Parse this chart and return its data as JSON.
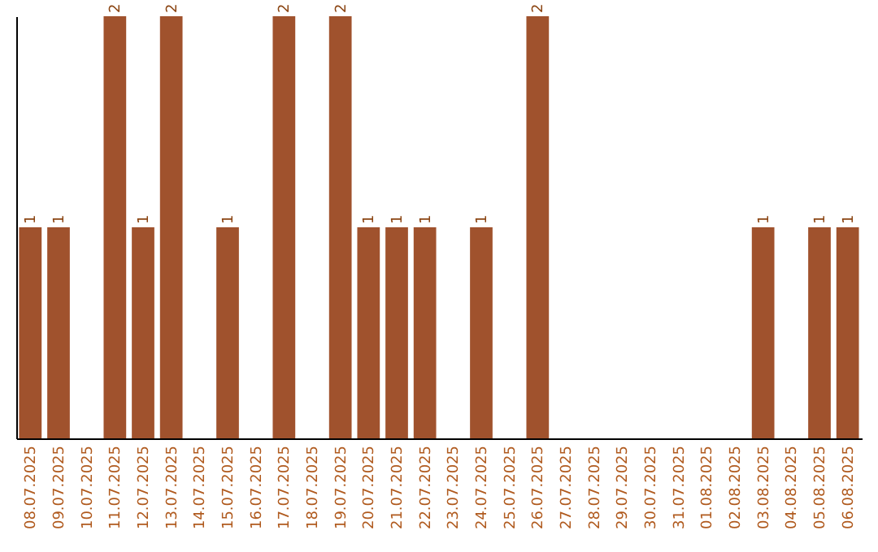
{
  "chart_data": {
    "type": "bar",
    "categories": [
      "08.07.2025",
      "09.07.2025",
      "10.07.2025",
      "11.07.2025",
      "12.07.2025",
      "13.07.2025",
      "14.07.2025",
      "15.07.2025",
      "16.07.2025",
      "17.07.2025",
      "18.07.2025",
      "19.07.2025",
      "20.07.2025",
      "21.07.2025",
      "22.07.2025",
      "23.07.2025",
      "24.07.2025",
      "25.07.2025",
      "26.07.2025",
      "27.07.2025",
      "28.07.2025",
      "29.07.2025",
      "30.07.2025",
      "31.07.2025",
      "01.08.2025",
      "02.08.2025",
      "03.08.2025",
      "04.08.2025",
      "05.08.2025",
      "06.08.2025"
    ],
    "values": [
      1,
      1,
      null,
      2,
      1,
      2,
      null,
      1,
      null,
      2,
      null,
      2,
      1,
      1,
      1,
      null,
      1,
      null,
      2,
      null,
      null,
      null,
      null,
      null,
      null,
      null,
      1,
      null,
      1,
      1
    ],
    "color": "#a0522d",
    "data_labels": true,
    "tick_labels": "x"
  }
}
